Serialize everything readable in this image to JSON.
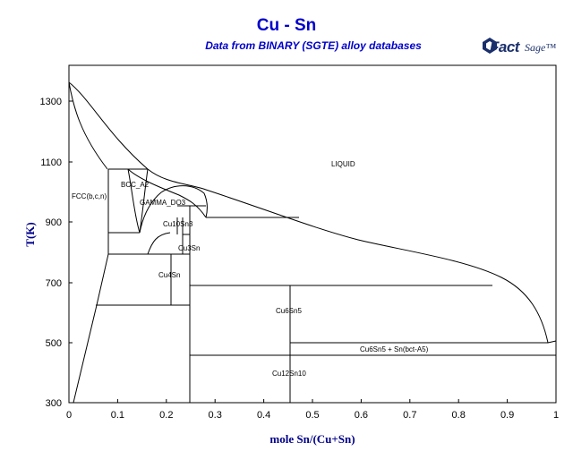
{
  "title": "Cu - Sn",
  "subtitle": "Data from BINARY (SGTE) alloy databases",
  "logo": {
    "word": "Fact",
    "suffix": "Sage™"
  },
  "axes": {
    "xlabel": "mole Sn/(Cu+Sn)",
    "ylabel": "T(K)",
    "xlim": [
      0,
      1
    ],
    "ylim": [
      300,
      1380
    ],
    "xticks": [
      "0",
      "0.1",
      "0.2",
      "0.3",
      "0.4",
      "0.5",
      "0.6",
      "0.7",
      "0.8",
      "0.9",
      "1"
    ],
    "yticks": [
      "300",
      "500",
      "700",
      "900",
      "1100",
      "1300"
    ]
  },
  "regions": {
    "liquid": "LIQUID",
    "fcc": "FCC(b,c,n)",
    "bcc": "BCC_A2",
    "gamma": "GAMMA_DO3",
    "cu10sn3": "Cu10Sn3",
    "cu3sn": "Cu3Sn",
    "cu4sn": "Cu4Sn",
    "cu6sn5": "Cu6Sn5",
    "cu12sn10": "Cu12Sn10",
    "cu6sn5_sn": "Cu6Sn5 + Sn(bct-A5)"
  }
}
